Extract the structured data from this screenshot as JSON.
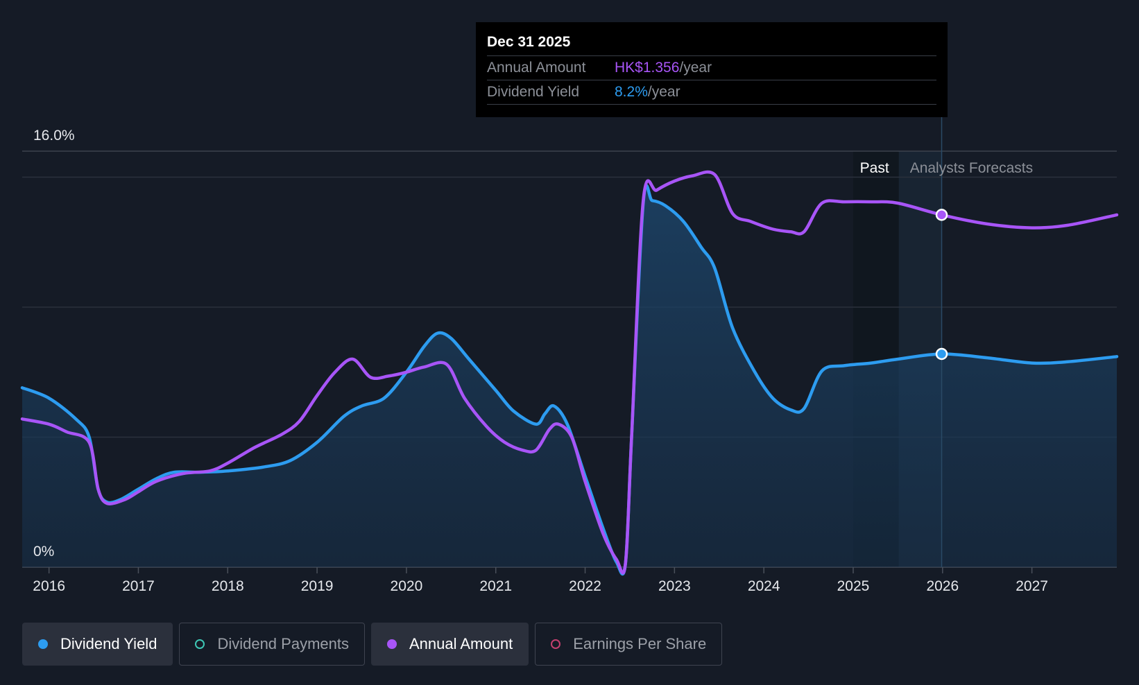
{
  "tooltip": {
    "date": "Dec 31 2025",
    "annual_amount_label": "Annual Amount",
    "annual_amount_value": "HK$1.356",
    "annual_amount_unit": "/year",
    "dividend_yield_label": "Dividend Yield",
    "dividend_yield_value": "8.2%",
    "dividend_yield_unit": "/year"
  },
  "legend": [
    {
      "label": "Dividend Yield",
      "color": "#2d9cf0",
      "filled": true,
      "active": true
    },
    {
      "label": "Dividend Payments",
      "color": "#3ec7b5",
      "filled": false,
      "active": false
    },
    {
      "label": "Annual Amount",
      "color": "#a855f7",
      "filled": true,
      "active": true
    },
    {
      "label": "Earnings Per Share",
      "color": "#c4406f",
      "filled": false,
      "active": false
    }
  ],
  "chart_data": {
    "type": "line",
    "ylim": [
      0,
      16
    ],
    "y_ticks": [
      {
        "value": 16,
        "label": "16.0%"
      },
      {
        "value": 0,
        "label": "0%"
      }
    ],
    "gridlines": [
      15,
      10,
      5
    ],
    "xlim": [
      2015.7,
      2027.95
    ],
    "x_ticks": [
      "2016",
      "2017",
      "2018",
      "2019",
      "2020",
      "2021",
      "2022",
      "2023",
      "2024",
      "2025",
      "2026",
      "2027"
    ],
    "regions": {
      "past_label": "Past",
      "forecast_label": "Analysts Forecasts",
      "past_start": 2025.0,
      "forecast_start": 2025.51
    },
    "highlight_x": 2025.99,
    "series": [
      {
        "name": "Dividend Yield",
        "color": "#2d9cf0",
        "area": true,
        "points": [
          [
            2015.7,
            6.9
          ],
          [
            2016.0,
            6.5
          ],
          [
            2016.3,
            5.7
          ],
          [
            2016.45,
            5.0
          ],
          [
            2016.55,
            3.0
          ],
          [
            2016.65,
            2.5
          ],
          [
            2016.8,
            2.6
          ],
          [
            2017.0,
            3.0
          ],
          [
            2017.2,
            3.4
          ],
          [
            2017.4,
            3.65
          ],
          [
            2017.7,
            3.65
          ],
          [
            2018.0,
            3.7
          ],
          [
            2018.4,
            3.85
          ],
          [
            2018.7,
            4.1
          ],
          [
            2019.0,
            4.8
          ],
          [
            2019.3,
            5.8
          ],
          [
            2019.5,
            6.2
          ],
          [
            2019.75,
            6.5
          ],
          [
            2020.0,
            7.5
          ],
          [
            2020.2,
            8.5
          ],
          [
            2020.35,
            9.0
          ],
          [
            2020.5,
            8.8
          ],
          [
            2020.7,
            8.0
          ],
          [
            2021.0,
            6.8
          ],
          [
            2021.2,
            6.0
          ],
          [
            2021.45,
            5.5
          ],
          [
            2021.55,
            5.9
          ],
          [
            2021.65,
            6.2
          ],
          [
            2021.8,
            5.5
          ],
          [
            2022.0,
            3.5
          ],
          [
            2022.2,
            1.5
          ],
          [
            2022.35,
            0.2
          ],
          [
            2022.45,
            0.1
          ],
          [
            2022.52,
            5.0
          ],
          [
            2022.65,
            14.0
          ],
          [
            2022.75,
            14.1
          ],
          [
            2022.9,
            13.9
          ],
          [
            2023.1,
            13.3
          ],
          [
            2023.3,
            12.3
          ],
          [
            2023.45,
            11.5
          ],
          [
            2023.65,
            9.2
          ],
          [
            2023.9,
            7.5
          ],
          [
            2024.1,
            6.5
          ],
          [
            2024.3,
            6.05
          ],
          [
            2024.45,
            6.1
          ],
          [
            2024.65,
            7.55
          ],
          [
            2024.9,
            7.75
          ],
          [
            2025.2,
            7.85
          ],
          [
            2025.5,
            8.0
          ],
          [
            2025.99,
            8.2
          ],
          [
            2026.5,
            8.05
          ],
          [
            2027.0,
            7.85
          ],
          [
            2027.4,
            7.9
          ],
          [
            2027.95,
            8.1
          ]
        ]
      },
      {
        "name": "Annual Amount",
        "color": "#a855f7",
        "area": false,
        "points": [
          [
            2015.7,
            5.7
          ],
          [
            2016.0,
            5.5
          ],
          [
            2016.2,
            5.2
          ],
          [
            2016.45,
            4.8
          ],
          [
            2016.55,
            3.0
          ],
          [
            2016.65,
            2.45
          ],
          [
            2016.85,
            2.6
          ],
          [
            2017.0,
            2.9
          ],
          [
            2017.2,
            3.3
          ],
          [
            2017.5,
            3.6
          ],
          [
            2017.8,
            3.7
          ],
          [
            2018.0,
            4.0
          ],
          [
            2018.3,
            4.6
          ],
          [
            2018.6,
            5.1
          ],
          [
            2018.8,
            5.6
          ],
          [
            2019.0,
            6.6
          ],
          [
            2019.2,
            7.5
          ],
          [
            2019.4,
            8.0
          ],
          [
            2019.6,
            7.3
          ],
          [
            2019.8,
            7.35
          ],
          [
            2020.0,
            7.5
          ],
          [
            2020.2,
            7.7
          ],
          [
            2020.45,
            7.8
          ],
          [
            2020.65,
            6.5
          ],
          [
            2020.9,
            5.4
          ],
          [
            2021.1,
            4.8
          ],
          [
            2021.3,
            4.5
          ],
          [
            2021.45,
            4.5
          ],
          [
            2021.6,
            5.3
          ],
          [
            2021.7,
            5.5
          ],
          [
            2021.85,
            5.0
          ],
          [
            2022.0,
            3.3
          ],
          [
            2022.2,
            1.3
          ],
          [
            2022.35,
            0.3
          ],
          [
            2022.45,
            0.1
          ],
          [
            2022.52,
            5.0
          ],
          [
            2022.65,
            14.1
          ],
          [
            2022.8,
            14.5
          ],
          [
            2023.0,
            14.85
          ],
          [
            2023.2,
            15.05
          ],
          [
            2023.45,
            15.1
          ],
          [
            2023.65,
            13.6
          ],
          [
            2023.85,
            13.3
          ],
          [
            2024.1,
            13.0
          ],
          [
            2024.3,
            12.9
          ],
          [
            2024.45,
            12.9
          ],
          [
            2024.65,
            14.0
          ],
          [
            2024.9,
            14.05
          ],
          [
            2025.2,
            14.05
          ],
          [
            2025.5,
            14.0
          ],
          [
            2025.99,
            13.55
          ],
          [
            2026.5,
            13.2
          ],
          [
            2027.0,
            13.05
          ],
          [
            2027.4,
            13.15
          ],
          [
            2027.95,
            13.55
          ]
        ]
      }
    ]
  }
}
